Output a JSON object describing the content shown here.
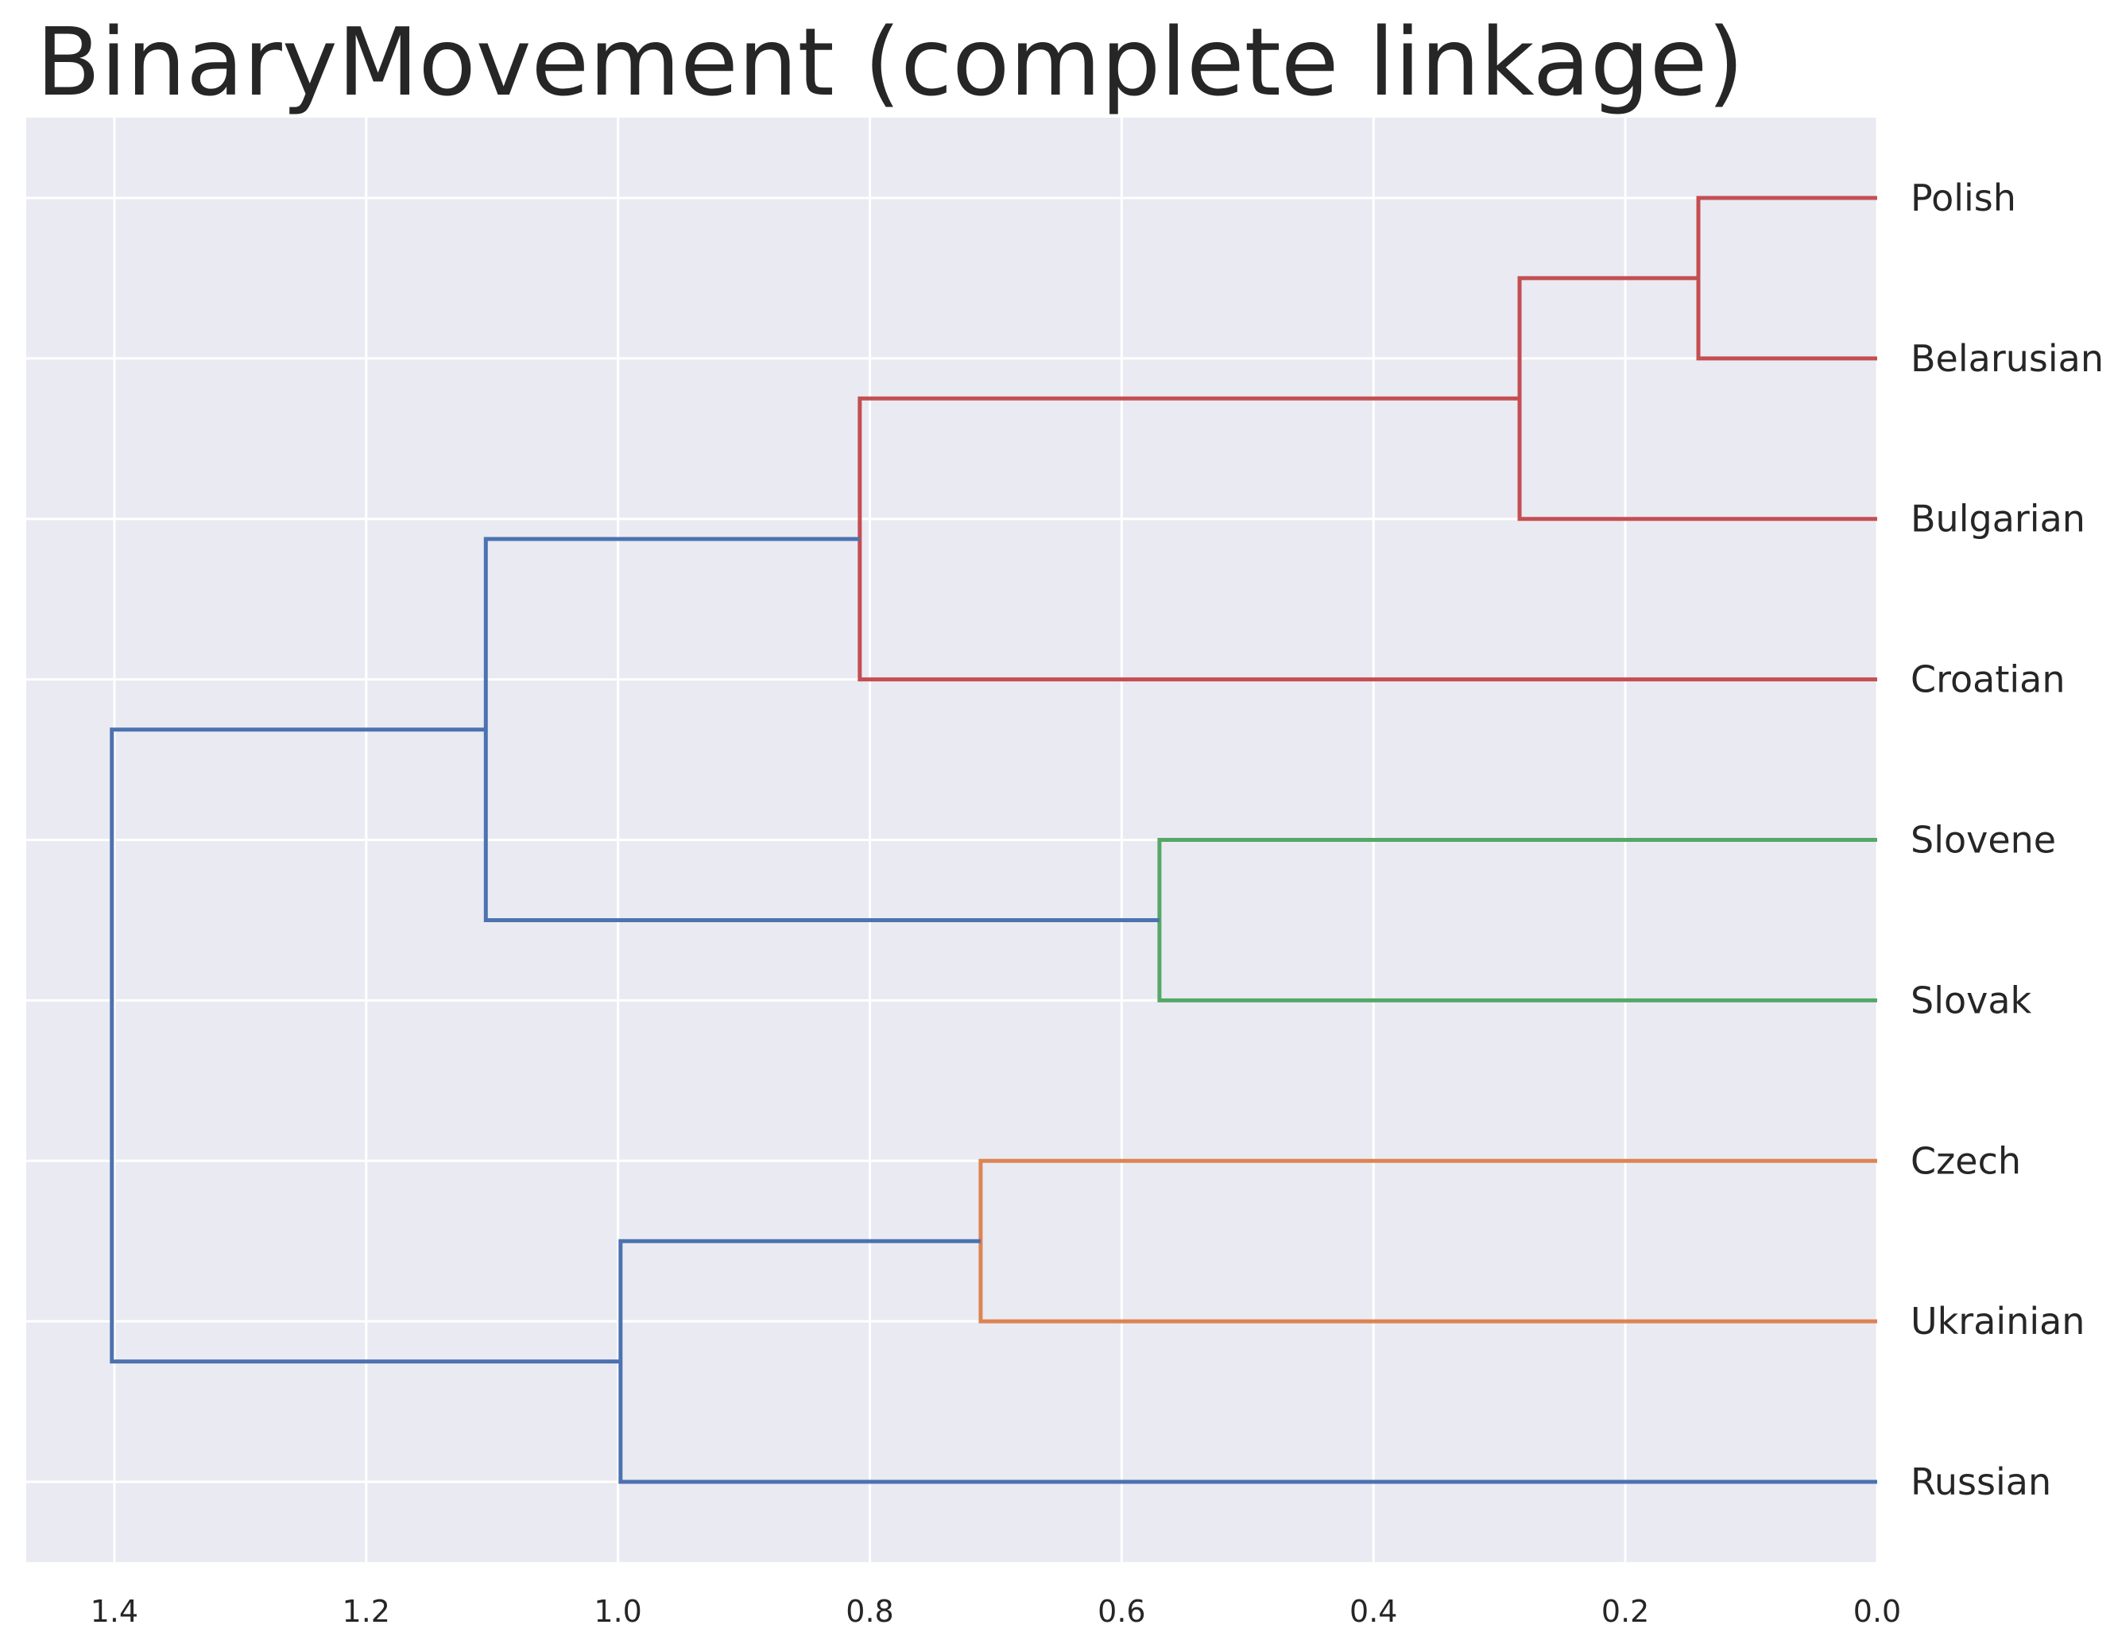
{
  "chart_data": {
    "type": "dendrogram",
    "title": "BinaryMovement (complete linkage)",
    "orientation": "left",
    "xlim": [
      1.47,
      0.0
    ],
    "x_ticks": [
      "1.4",
      "1.2",
      "1.0",
      "0.8",
      "0.6",
      "0.4",
      "0.2",
      "0.0"
    ],
    "x_tick_values": [
      1.4,
      1.2,
      1.0,
      0.8,
      0.6,
      0.4,
      0.2,
      0.0
    ],
    "grid": true,
    "leaves": [
      "Polish",
      "Belarusian",
      "Bulgarian",
      "Croatian",
      "Slovene",
      "Slovak",
      "Czech",
      "Ukrainian",
      "Russian"
    ],
    "links": [
      {
        "children": [
          "Polish",
          "Belarusian"
        ],
        "distance": 0.142,
        "color": "#c44e52"
      },
      {
        "children": [
          "Polish+Belarusian",
          "Bulgarian"
        ],
        "distance": 0.284,
        "color": "#c44e52"
      },
      {
        "children": [
          "Polish+Belarusian+Bulgarian",
          "Croatian"
        ],
        "distance": 0.808,
        "color": "#c44e52"
      },
      {
        "children": [
          "Slovene",
          "Slovak"
        ],
        "distance": 0.57,
        "color": "#55a868"
      },
      {
        "children": [
          "Czech",
          "Ukrainian"
        ],
        "distance": 0.712,
        "color": "#dd8452"
      },
      {
        "children": [
          "Polish-Croatian group",
          "Slovene+Slovak"
        ],
        "distance": 1.105,
        "color": "#4c72b0"
      },
      {
        "children": [
          "Czech+Ukrainian",
          "Russian"
        ],
        "distance": 0.998,
        "color": "#4c72b0"
      },
      {
        "children": [
          "Polish-Slovak group",
          "Czech-Russian group"
        ],
        "distance": 1.402,
        "color": "#4c72b0"
      }
    ],
    "colors": {
      "background": "#eaeaf2",
      "grid": "#ffffff",
      "text": "#262626"
    }
  }
}
